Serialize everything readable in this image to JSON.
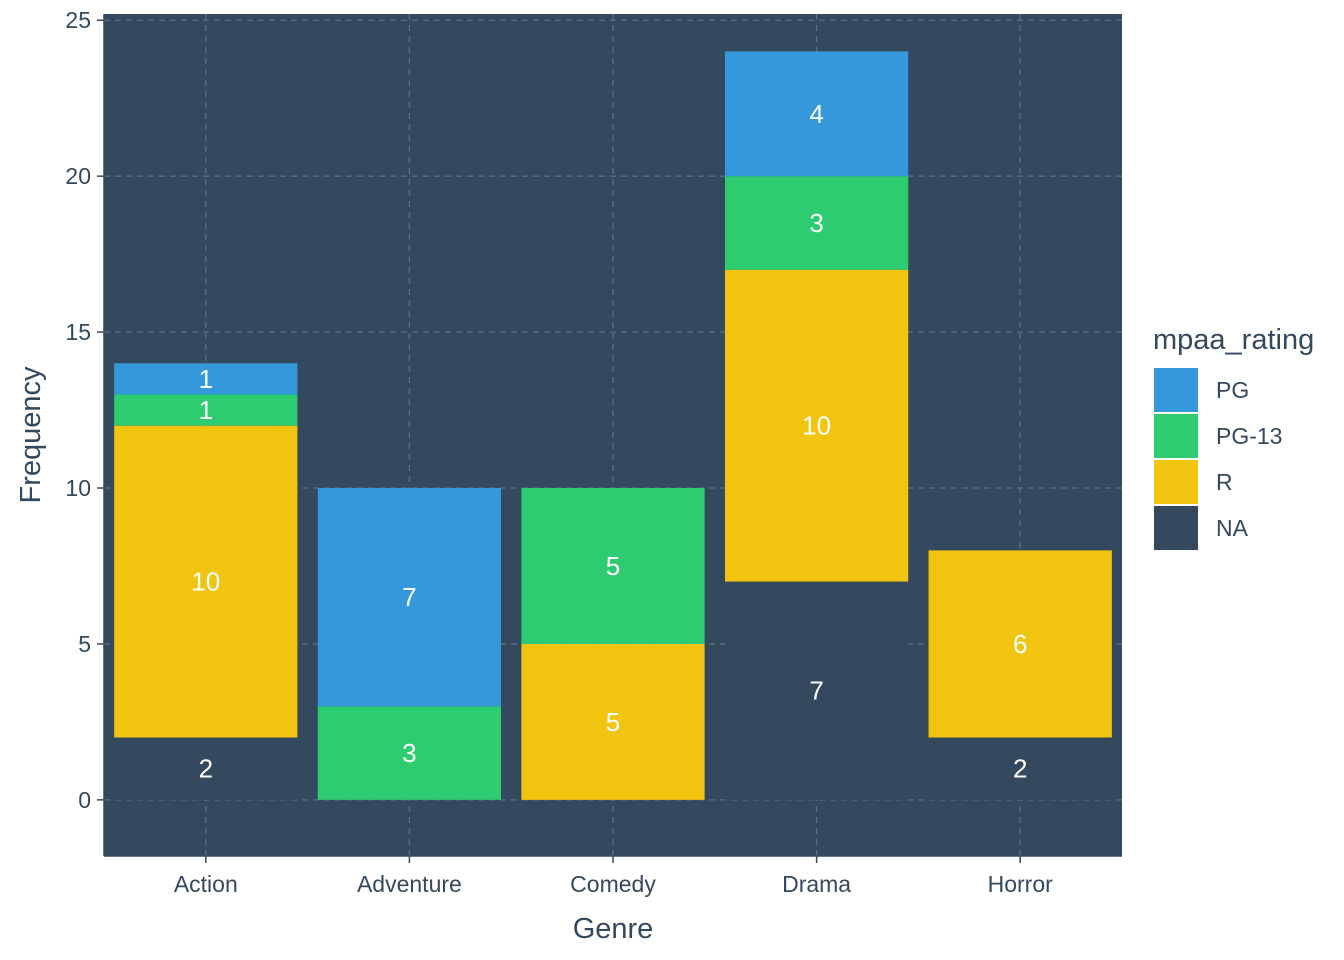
{
  "chart_data": {
    "type": "bar",
    "stacked": true,
    "categories": [
      "Action",
      "Adventure",
      "Comedy",
      "Drama",
      "Horror"
    ],
    "series": [
      {
        "name": "PG",
        "color": "#3498db",
        "values": [
          1,
          7,
          0,
          4,
          0
        ]
      },
      {
        "name": "PG-13",
        "color": "#2ecc71",
        "values": [
          1,
          3,
          5,
          3,
          0
        ]
      },
      {
        "name": "R",
        "color": "#f1c40f",
        "values": [
          10,
          0,
          5,
          10,
          6
        ]
      },
      {
        "name": "NA",
        "color": "#34495e",
        "values": [
          2,
          0,
          0,
          7,
          2
        ]
      }
    ],
    "xlabel": "Genre",
    "ylabel": "Frequency",
    "ylim": [
      -1.8,
      25.2
    ],
    "yticks": [
      0,
      5,
      10,
      15,
      20,
      25
    ],
    "grid": true,
    "legend": {
      "title": "mpaa_rating",
      "position": "right"
    },
    "colors": {
      "panel_background": "#34495e",
      "grid": "#5b6f84",
      "text": "#34495e",
      "bar_label": "#ffffff"
    }
  }
}
